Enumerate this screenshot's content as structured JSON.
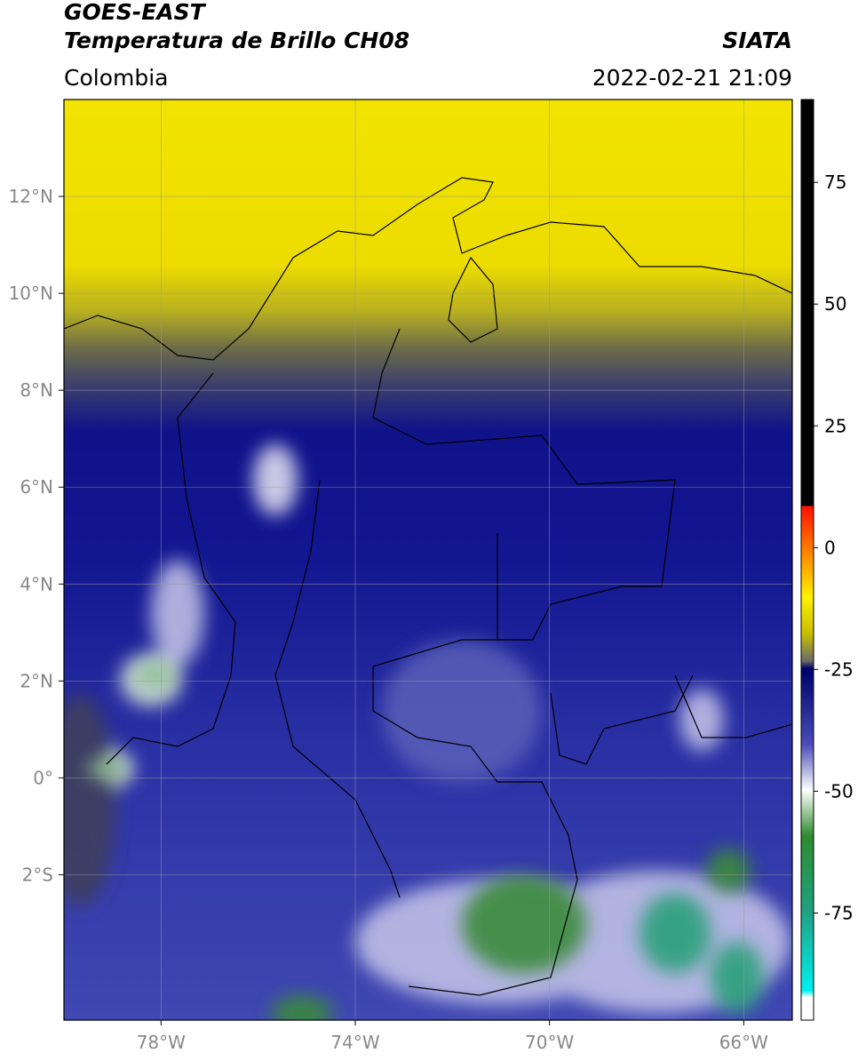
{
  "header": {
    "title": "GOES-EAST",
    "subtitle": "Temperatura de Brillo CH08",
    "source": "SIATA",
    "region": "Colombia",
    "timestamp": "2022-02-21 21:09"
  },
  "map": {
    "xlim": [
      -80,
      -65
    ],
    "ylim": [
      -5,
      14
    ],
    "xticks": [
      {
        "value": -78,
        "label": "78°W"
      },
      {
        "value": -74,
        "label": "74°W"
      },
      {
        "value": -70,
        "label": "70°W"
      },
      {
        "value": -66,
        "label": "66°W"
      }
    ],
    "yticks": [
      {
        "value": 12,
        "label": "12°N"
      },
      {
        "value": 10,
        "label": "10°N"
      },
      {
        "value": 8,
        "label": "8°N"
      },
      {
        "value": 6,
        "label": "6°N"
      },
      {
        "value": 4,
        "label": "4°N"
      },
      {
        "value": 2,
        "label": "2°N"
      },
      {
        "value": 0,
        "label": "0°"
      },
      {
        "value": -2,
        "label": "2°S"
      }
    ],
    "grid": true
  },
  "colorbar": {
    "lim": [
      -97,
      92
    ],
    "ticks": [
      75,
      50,
      25,
      0,
      -25,
      -50,
      -75
    ]
  }
}
